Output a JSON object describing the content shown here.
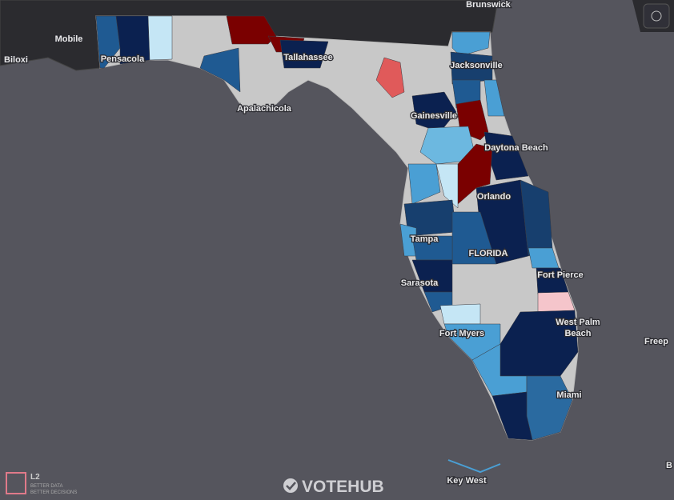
{
  "labels": [
    "Brunswick",
    "Mobile",
    "Biloxi",
    "Pensacola",
    "Tallahassee",
    "Jacksonville",
    "Apalachicola",
    "Gainesville",
    "Daytona Beach",
    "Orlando",
    "Tampa",
    "FLORIDA",
    "Fort Pierce",
    "Sarasota",
    "West Palm",
    "Beach",
    "Fort Myers",
    "Miami",
    "Freep",
    "Key West",
    "B"
  ],
  "logo": {
    "mark": "L2",
    "line1": "BETTER DATA",
    "line2": "BETTER DECISIONS"
  },
  "brand": "VOTEHUB"
}
